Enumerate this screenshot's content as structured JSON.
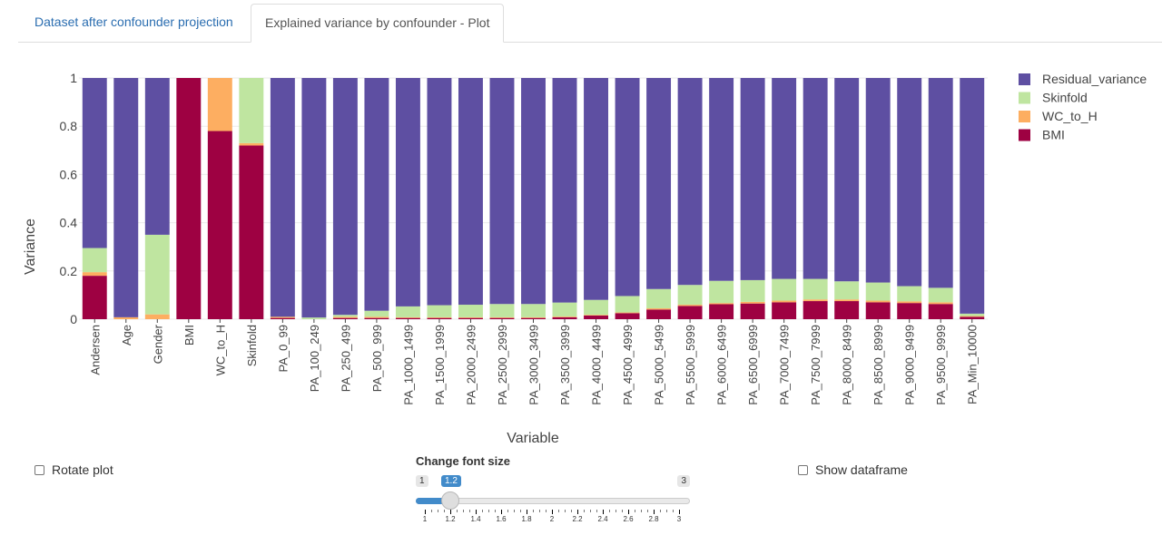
{
  "tabs": [
    {
      "label": "Dataset after confounder projection",
      "active": false
    },
    {
      "label": "Explained variance by confounder - Plot",
      "active": true
    }
  ],
  "chart_data": {
    "type": "bar",
    "stacked": true,
    "xlabel": "Variable",
    "ylabel": "Variance",
    "ylim": [
      0,
      1
    ],
    "yticks": [
      "0",
      "0.2",
      "0.4",
      "0.6",
      "0.8",
      "1"
    ],
    "categories": [
      "Andersen",
      "Age",
      "Gender",
      "BMI",
      "WC_to_H",
      "Skinfold",
      "PA_0_99",
      "PA_100_249",
      "PA_250_499",
      "PA_500_999",
      "PA_1000_1499",
      "PA_1500_1999",
      "PA_2000_2499",
      "PA_2500_2999",
      "PA_3000_3499",
      "PA_3500_3999",
      "PA_4000_4499",
      "PA_4500_4999",
      "PA_5000_5499",
      "PA_5500_5999",
      "PA_6000_6499",
      "PA_6500_6999",
      "PA_7000_7499",
      "PA_7500_7999",
      "PA_8000_8499",
      "PA_8500_8999",
      "PA_9000_9499",
      "PA_9500_9999",
      "PA_Min_10000"
    ],
    "series": [
      {
        "name": "BMI",
        "color": "#9e0142",
        "values": [
          0.18,
          0.0,
          0.0,
          1.0,
          0.78,
          0.72,
          0.005,
          0.0,
          0.005,
          0.005,
          0.005,
          0.005,
          0.005,
          0.005,
          0.005,
          0.008,
          0.015,
          0.025,
          0.04,
          0.055,
          0.062,
          0.065,
          0.07,
          0.075,
          0.075,
          0.07,
          0.067,
          0.063,
          0.01
        ]
      },
      {
        "name": "WC_to_H",
        "color": "#fdae61",
        "values": [
          0.015,
          0.008,
          0.02,
          0.0,
          0.22,
          0.01,
          0.005,
          0.0,
          0.005,
          0.005,
          0.003,
          0.003,
          0.003,
          0.003,
          0.003,
          0.003,
          0.003,
          0.003,
          0.005,
          0.005,
          0.005,
          0.007,
          0.007,
          0.007,
          0.007,
          0.007,
          0.007,
          0.007,
          0.003
        ]
      },
      {
        "name": "Skinfold",
        "color": "#bfe5a0",
        "values": [
          0.1,
          0.0,
          0.33,
          0.0,
          0.0,
          0.27,
          0.0,
          0.007,
          0.008,
          0.025,
          0.045,
          0.05,
          0.052,
          0.055,
          0.055,
          0.058,
          0.062,
          0.068,
          0.08,
          0.082,
          0.092,
          0.09,
          0.09,
          0.085,
          0.075,
          0.075,
          0.063,
          0.06,
          0.01
        ]
      },
      {
        "name": "Residual_variance",
        "color": "#5e4fa2",
        "values": [
          0.705,
          0.992,
          0.65,
          0.0,
          0.0,
          0.0,
          0.99,
          0.993,
          0.982,
          0.965,
          0.947,
          0.942,
          0.94,
          0.937,
          0.937,
          0.931,
          0.92,
          0.904,
          0.875,
          0.858,
          0.841,
          0.838,
          0.833,
          0.833,
          0.843,
          0.848,
          0.863,
          0.87,
          0.977
        ]
      }
    ],
    "legend": {
      "position": "top-right",
      "order": [
        "Residual_variance",
        "Skinfold",
        "WC_to_H",
        "BMI"
      ]
    },
    "grid": true
  },
  "controls": {
    "rotate_label": "Rotate plot",
    "rotate_checked": false,
    "show_df_label": "Show dataframe",
    "show_df_checked": false,
    "font_slider": {
      "label": "Change font size",
      "min": "1",
      "max": "3",
      "value": "1.2",
      "value_fraction": 0.1,
      "ticks": [
        "1",
        "1.2",
        "1.4",
        "1.6",
        "1.8",
        "2",
        "2.2",
        "2.4",
        "2.6",
        "2.8",
        "3"
      ]
    }
  }
}
